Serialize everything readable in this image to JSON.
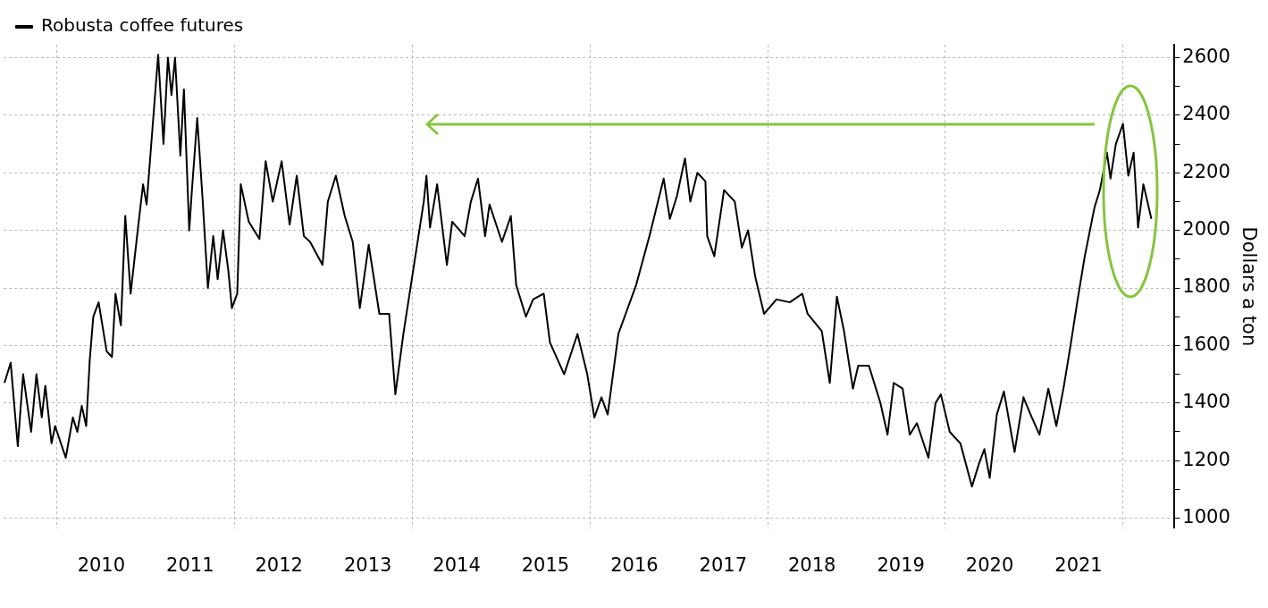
{
  "chart_data": {
    "type": "line",
    "ylabel": "Dollars a ton",
    "legend": "top left",
    "grid": true,
    "xlim": [
      2009.4,
      2022.58
    ],
    "xticks": [
      {
        "value": 2010,
        "label": null
      },
      {
        "value": 2010.5,
        "label": "2010"
      },
      {
        "value": 2011.5,
        "label": "2011"
      },
      {
        "value": 2012,
        "label": null
      },
      {
        "value": 2012.5,
        "label": "2012"
      },
      {
        "value": 2013.5,
        "label": "2013"
      },
      {
        "value": 2014,
        "label": null
      },
      {
        "value": 2014.5,
        "label": "2014"
      },
      {
        "value": 2015.5,
        "label": "2015"
      },
      {
        "value": 2016,
        "label": null
      },
      {
        "value": 2016.5,
        "label": "2016"
      },
      {
        "value": 2017.5,
        "label": "2017"
      },
      {
        "value": 2018,
        "label": null
      },
      {
        "value": 2018.5,
        "label": "2018"
      },
      {
        "value": 2019.5,
        "label": "2019"
      },
      {
        "value": 2020,
        "label": null
      },
      {
        "value": 2020.5,
        "label": "2020"
      },
      {
        "value": 2021.5,
        "label": "2021"
      },
      {
        "value": 2022,
        "label": null
      }
    ],
    "ylim": [
      965,
      2645
    ],
    "yticks": [
      1000,
      {
        "value": 1100,
        "label": null
      },
      1200,
      {
        "value": 1300,
        "label": null
      },
      1400,
      {
        "value": 1500,
        "label": null
      },
      1600,
      {
        "value": 1700,
        "label": null
      },
      1800,
      {
        "value": 1900,
        "label": null
      },
      2000,
      {
        "value": 2100,
        "label": null
      },
      2200,
      {
        "value": 2300,
        "label": null
      },
      2400,
      {
        "value": 2500,
        "label": null
      },
      2600
    ],
    "series": [
      {
        "name": "Robusta coffee futures",
        "color": "#000000",
        "x": [
          2009.41,
          2009.48,
          2009.56,
          2009.62,
          2009.71,
          2009.77,
          2009.83,
          2009.87,
          2009.94,
          2009.98,
          2010.1,
          2010.18,
          2010.23,
          2010.28,
          2010.33,
          2010.37,
          2010.41,
          2010.47,
          2010.56,
          2010.62,
          2010.66,
          2010.72,
          2010.77,
          2010.83,
          2010.91,
          2010.97,
          2011.01,
          2011.08,
          2011.14,
          2011.2,
          2011.25,
          2011.29,
          2011.33,
          2011.39,
          2011.43,
          2011.49,
          2011.52,
          2011.58,
          2011.64,
          2011.7,
          2011.76,
          2011.81,
          2011.87,
          2011.93,
          2011.97,
          2012.03,
          2012.07,
          2012.16,
          2012.28,
          2012.35,
          2012.43,
          2012.53,
          2012.62,
          2012.7,
          2012.78,
          2012.85,
          2012.99,
          2013.05,
          2013.14,
          2013.24,
          2013.33,
          2013.41,
          2013.51,
          2013.63,
          2013.74,
          2013.81,
          2013.9,
          2014.13,
          2014.16,
          2014.2,
          2014.28,
          2014.39,
          2014.45,
          2014.59,
          2014.66,
          2014.74,
          2014.82,
          2014.87,
          2015.01,
          2015.11,
          2015.17,
          2015.28,
          2015.36,
          2015.48,
          2015.55,
          2015.71,
          2015.86,
          2015.97,
          2016.05,
          2016.13,
          2016.2,
          2016.32,
          2016.52,
          2016.67,
          2016.83,
          2016.9,
          2016.98,
          2017.07,
          2017.13,
          2017.21,
          2017.3,
          2017.32,
          2017.4,
          2017.51,
          2017.63,
          2017.71,
          2017.78,
          2017.86,
          2017.96,
          2018.1,
          2018.25,
          2018.39,
          2018.45,
          2018.61,
          2018.7,
          2018.78,
          2018.86,
          2018.96,
          2019.02,
          2019.14,
          2019.27,
          2019.35,
          2019.42,
          2019.52,
          2019.6,
          2019.68,
          2019.81,
          2019.89,
          2019.95,
          2020.05,
          2020.17,
          2020.3,
          2020.38,
          2020.44,
          2020.5,
          2020.58,
          2020.66,
          2020.78,
          2020.88,
          2020.96,
          2021.06,
          2021.16,
          2021.25,
          2021.33,
          2021.41,
          2021.49,
          2021.57,
          2021.68,
          2021.74,
          2021.82,
          2021.86,
          2021.92,
          2022.0,
          2022.06,
          2022.12,
          2022.17,
          2022.23,
          2022.32
        ],
        "values": [
          1470,
          1540,
          1250,
          1500,
          1300,
          1500,
          1350,
          1460,
          1260,
          1320,
          1210,
          1350,
          1300,
          1390,
          1320,
          1550,
          1700,
          1750,
          1580,
          1560,
          1780,
          1670,
          2050,
          1780,
          2000,
          2160,
          2090,
          2370,
          2610,
          2300,
          2600,
          2470,
          2600,
          2260,
          2490,
          2000,
          2140,
          2390,
          2110,
          1800,
          1980,
          1830,
          2000,
          1860,
          1730,
          1780,
          2160,
          2030,
          1970,
          2240,
          2100,
          2240,
          2020,
          2190,
          1980,
          1960,
          1880,
          2100,
          2190,
          2050,
          1960,
          1730,
          1950,
          1710,
          1710,
          1430,
          1640,
          2100,
          2190,
          2010,
          2160,
          1880,
          2030,
          1980,
          2100,
          2180,
          1980,
          2090,
          1960,
          2050,
          1810,
          1700,
          1760,
          1780,
          1610,
          1500,
          1640,
          1500,
          1350,
          1420,
          1360,
          1640,
          1810,
          1980,
          2180,
          2040,
          2120,
          2250,
          2100,
          2200,
          2170,
          1980,
          1910,
          2140,
          2100,
          1940,
          2000,
          1840,
          1710,
          1760,
          1750,
          1780,
          1710,
          1650,
          1470,
          1770,
          1650,
          1450,
          1530,
          1530,
          1400,
          1290,
          1470,
          1450,
          1290,
          1330,
          1210,
          1400,
          1430,
          1300,
          1260,
          1110,
          1190,
          1240,
          1140,
          1360,
          1440,
          1230,
          1420,
          1360,
          1290,
          1450,
          1320,
          1450,
          1600,
          1760,
          1910,
          2080,
          2140,
          2270,
          2180,
          2300,
          2370,
          2190,
          2270,
          2010,
          2160,
          2040
        ]
      }
    ]
  }
}
